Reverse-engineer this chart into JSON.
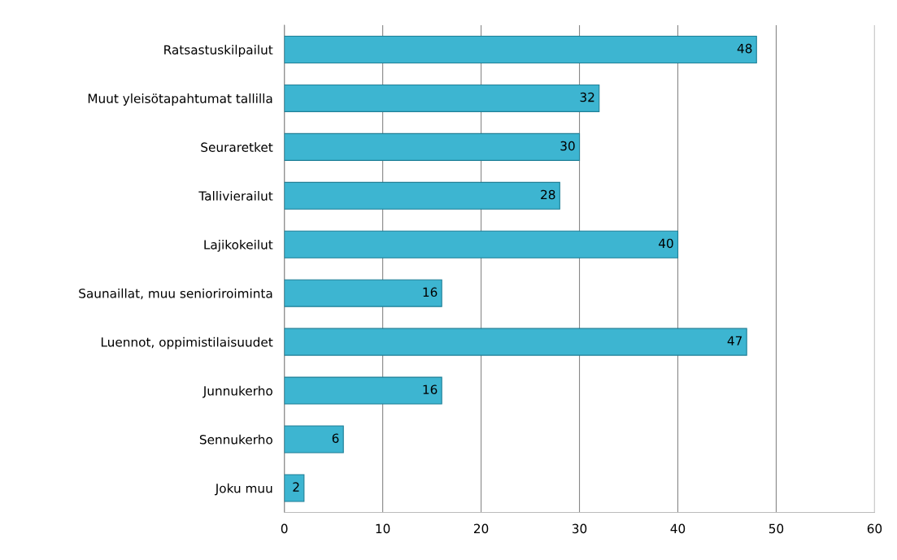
{
  "chart_data": {
    "type": "bar",
    "orientation": "horizontal",
    "categories": [
      "Ratsastuskilpailut",
      "Muut yleisötapahtumat tallilla",
      "Seuraretket",
      "Tallivierailut",
      "Lajikokeilut",
      "Saunaillat, muu senioriroiminta",
      "Luennot, oppimistilaisuudet",
      "Junnukerho",
      "Sennukerho",
      "Joku muu"
    ],
    "values": [
      48,
      32,
      30,
      28,
      40,
      16,
      47,
      16,
      6,
      2
    ],
    "color": "#3db5d1",
    "xlim": [
      0,
      60
    ],
    "xticks": [
      0,
      10,
      20,
      30,
      40,
      50,
      60
    ],
    "grid": "x",
    "data_labels": true
  }
}
